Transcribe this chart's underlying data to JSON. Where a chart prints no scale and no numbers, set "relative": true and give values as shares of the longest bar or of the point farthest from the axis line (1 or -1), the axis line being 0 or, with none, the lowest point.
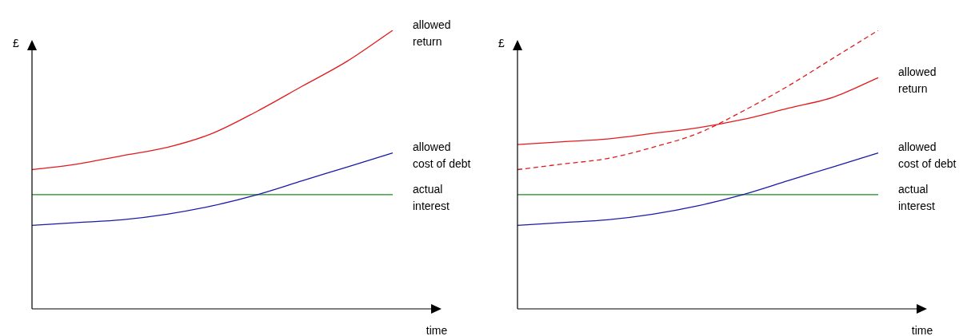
{
  "chart_data": [
    {
      "type": "line",
      "relative": true,
      "marker": "none",
      "ylabel": "£",
      "xlabel": "time",
      "categories": [
        null,
        null,
        null,
        null,
        null,
        null,
        null,
        null,
        null
      ],
      "series": [
        {
          "name": "allowed return",
          "color": "#e31a1c",
          "values": [
            0.5,
            0.52,
            0.55,
            0.58,
            0.63,
            0.71,
            0.8,
            0.89,
            1.0
          ]
        },
        {
          "name": "allowed cost of debt",
          "color": "#1a1aaa",
          "values": [
            0.3,
            0.31,
            0.32,
            0.34,
            0.37,
            0.41,
            0.46,
            0.51,
            0.56
          ]
        },
        {
          "name": "actual interest",
          "color": "#1a8c1a",
          "values": [
            0.41,
            0.41,
            0.41,
            0.41,
            0.41,
            0.41,
            0.41,
            0.41,
            0.41
          ]
        }
      ]
    },
    {
      "type": "line",
      "relative": true,
      "marker": "none",
      "ylabel": "£",
      "xlabel": "time",
      "categories": [
        null,
        null,
        null,
        null,
        null,
        null,
        null,
        null,
        null
      ],
      "series": [
        {
          "line_style": "dashed",
          "color": "#e31a1c",
          "values": [
            0.5,
            0.52,
            0.54,
            0.58,
            0.63,
            0.71,
            0.8,
            0.9,
            1.0
          ]
        },
        {
          "name": "allowed return",
          "color": "#e31a1c",
          "values": [
            0.59,
            0.6,
            0.61,
            0.63,
            0.65,
            0.68,
            0.72,
            0.76,
            0.83
          ]
        },
        {
          "name": "allowed cost of debt",
          "color": "#1a1aaa",
          "values": [
            0.3,
            0.31,
            0.32,
            0.34,
            0.37,
            0.41,
            0.46,
            0.51,
            0.56
          ]
        },
        {
          "name": "actual interest",
          "color": "#1a8c1a",
          "values": [
            0.41,
            0.41,
            0.41,
            0.41,
            0.41,
            0.41,
            0.41,
            0.41,
            0.41
          ]
        }
      ]
    }
  ]
}
